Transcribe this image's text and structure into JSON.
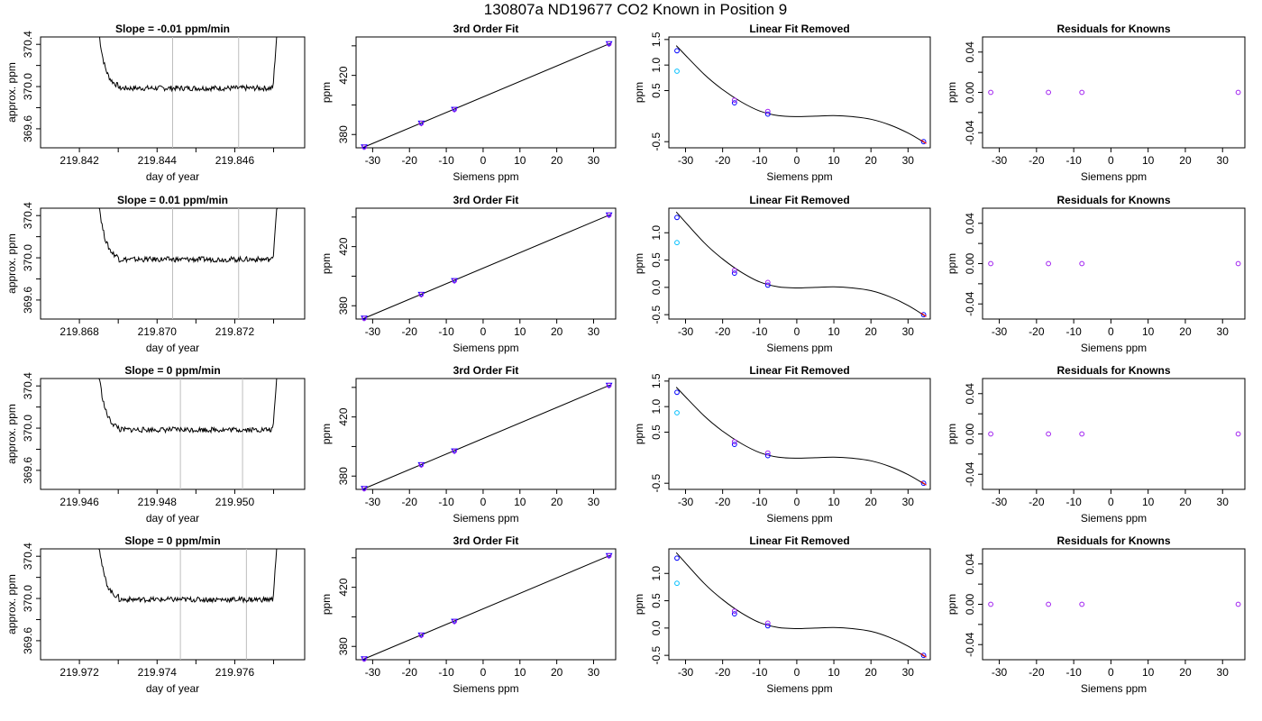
{
  "title": "130807a     ND19677    CO2 Known in Position  9",
  "colors": {
    "axis": "#000000",
    "line": "#000000",
    "vline": "#bebebe",
    "point_blue": "#0000ff",
    "point_purple": "#a020f0",
    "point_cyan": "#00bfff",
    "point_red": "#ff0000"
  },
  "rows": [
    {
      "row_id": "1",
      "ts": {
        "title": "Slope =  -0.01  ppm/min",
        "xlabel": "day of year",
        "ylabel": "approx. ppm",
        "xticks": [
          219.842,
          219.844,
          219.846
        ],
        "xtick_labels": [
          "219.842",
          "219.844",
          "219.846"
        ],
        "xlim": [
          219.841,
          219.8478
        ],
        "yticks": [
          369.6,
          370.0,
          370.4
        ],
        "ytick_labels": [
          "369.6",
          "370.0",
          "370.4"
        ],
        "ylim": [
          369.42,
          370.47
        ],
        "vlines": [
          219.8444,
          219.8461
        ],
        "flat": 369.985,
        "spike_left": 219.8425,
        "spike_right": 219.8471
      },
      "fit": {
        "title": "3rd Order Fit",
        "xlabel": "Siemens ppm",
        "ylabel": "ppm",
        "ylim": [
          371,
          446
        ],
        "yticks": [
          380,
          420
        ],
        "ytick_labels": [
          "380",
          "420"
        ]
      },
      "lin": {
        "title": "Linear Fit Removed",
        "xlabel": "Siemens ppm",
        "ylabel": "ppm",
        "ylim": [
          -0.62,
          1.55
        ],
        "yticks": [
          -0.5,
          0.5,
          1.0,
          1.5
        ],
        "ytick_labels": [
          "-0.5",
          "0.5",
          "1.0",
          "1.5"
        ],
        "cyan_y": 0.88
      },
      "res": {
        "title": "Residuals for Knowns",
        "xlabel": "Siemens ppm",
        "ylabel": "ppm"
      }
    },
    {
      "row_id": "2",
      "ts": {
        "title": "Slope =  0.01  ppm/min",
        "xlabel": "day of year",
        "ylabel": "approx. ppm",
        "xticks": [
          219.868,
          219.87,
          219.872
        ],
        "xtick_labels": [
          "219.868",
          "219.870",
          "219.872"
        ],
        "xlim": [
          219.867,
          219.8738
        ],
        "yticks": [
          369.6,
          370.0,
          370.4
        ],
        "ytick_labels": [
          "369.6",
          "370.0",
          "370.4"
        ],
        "ylim": [
          369.42,
          370.47
        ],
        "vlines": [
          219.8704,
          219.8721
        ],
        "flat": 369.985,
        "spike_left": 219.8685,
        "spike_right": 219.8731
      },
      "fit": {
        "title": "3rd Order Fit",
        "xlabel": "Siemens ppm",
        "ylabel": "ppm",
        "ylim": [
          371,
          446
        ],
        "yticks": [
          380,
          420
        ],
        "ytick_labels": [
          "380",
          "420"
        ]
      },
      "lin": {
        "title": "Linear Fit Removed",
        "xlabel": "Siemens ppm",
        "ylabel": "ppm",
        "ylim": [
          -0.58,
          1.45
        ],
        "yticks": [
          -0.5,
          0.0,
          0.5,
          1.0
        ],
        "ytick_labels": [
          "-0.5",
          "0.0",
          "0.5",
          "1.0"
        ],
        "cyan_y": 0.82
      },
      "res": {
        "title": "Residuals for Knowns",
        "xlabel": "Siemens ppm",
        "ylabel": "ppm"
      }
    },
    {
      "row_id": "3",
      "ts": {
        "title": "Slope =  0  ppm/min",
        "xlabel": "day of year",
        "ylabel": "approx. ppm",
        "xticks": [
          219.946,
          219.948,
          219.95
        ],
        "xtick_labels": [
          "219.946",
          "219.948",
          "219.950"
        ],
        "xlim": [
          219.945,
          219.9518
        ],
        "yticks": [
          369.6,
          370.0,
          370.4
        ],
        "ytick_labels": [
          "369.6",
          "370.0",
          "370.4"
        ],
        "ylim": [
          369.42,
          370.47
        ],
        "vlines": [
          219.9486,
          219.9502
        ],
        "flat": 369.985,
        "spike_left": 219.9465,
        "spike_right": 219.9511
      },
      "fit": {
        "title": "3rd Order Fit",
        "xlabel": "Siemens ppm",
        "ylabel": "ppm",
        "ylim": [
          371,
          446
        ],
        "yticks": [
          380,
          420
        ],
        "ytick_labels": [
          "380",
          "420"
        ]
      },
      "lin": {
        "title": "Linear Fit Removed",
        "xlabel": "Siemens ppm",
        "ylabel": "ppm",
        "ylim": [
          -0.62,
          1.55
        ],
        "yticks": [
          -0.5,
          0.5,
          1.0,
          1.5
        ],
        "ytick_labels": [
          "-0.5",
          "0.5",
          "1.0",
          "1.5"
        ],
        "cyan_y": 0.88
      },
      "res": {
        "title": "Residuals for Knowns",
        "xlabel": "Siemens ppm",
        "ylabel": "ppm"
      }
    },
    {
      "row_id": "4",
      "ts": {
        "title": "Slope =  0  ppm/min",
        "xlabel": "day of year",
        "ylabel": "approx. ppm",
        "xticks": [
          219.972,
          219.974,
          219.976
        ],
        "xtick_labels": [
          "219.972",
          "219.974",
          "219.976"
        ],
        "xlim": [
          219.971,
          219.9778
        ],
        "yticks": [
          369.6,
          370.0,
          370.4
        ],
        "ytick_labels": [
          "369.6",
          "370.0",
          "370.4"
        ],
        "ylim": [
          369.42,
          370.47
        ],
        "vlines": [
          219.9746,
          219.9763
        ],
        "flat": 369.99,
        "spike_left": 219.9725,
        "spike_right": 219.9771
      },
      "fit": {
        "title": "3rd Order Fit",
        "xlabel": "Siemens ppm",
        "ylabel": "ppm",
        "ylim": [
          371,
          446
        ],
        "yticks": [
          380,
          420
        ],
        "ytick_labels": [
          "380",
          "420"
        ]
      },
      "lin": {
        "title": "Linear Fit Removed",
        "xlabel": "Siemens ppm",
        "ylabel": "ppm",
        "ylim": [
          -0.58,
          1.45
        ],
        "yticks": [
          -0.5,
          0.0,
          0.5,
          1.0
        ],
        "ytick_labels": [
          "-0.5",
          "0.0",
          "0.5",
          "1.0"
        ],
        "cyan_y": 0.82
      },
      "res": {
        "title": "Residuals for Knowns",
        "xlabel": "Siemens ppm",
        "ylabel": "ppm"
      }
    }
  ],
  "chart_data": {
    "type": "line",
    "layout": "4 rows x 4 panels",
    "shared_x": {
      "siemens_xlim": [
        -34.5,
        36
      ],
      "siemens_ticks": [
        -30,
        -20,
        -10,
        0,
        10,
        20,
        30
      ],
      "siemens_tick_labels": [
        "-30",
        "-20",
        "-10",
        "0",
        "10",
        "20",
        "30"
      ]
    },
    "knowns_siemens_ppm": [
      -32.3,
      -16.8,
      -7.8,
      34.2
    ],
    "third_order_fit": {
      "points_ppm": [
        371.5,
        387.6,
        396.9,
        441.3
      ],
      "line": [
        [
          -32.5,
          371.3
        ],
        [
          34.5,
          441.6
        ]
      ]
    },
    "linear_fit_removed": {
      "points_ppm": [
        1.28,
        0.26,
        0.04,
        -0.5
      ],
      "curve_x": [
        -32.5,
        -25,
        -20,
        -15,
        -10,
        -5,
        0,
        5,
        10,
        15,
        20,
        25,
        30,
        34.5
      ],
      "curve_y": [
        1.38,
        0.82,
        0.52,
        0.28,
        0.1,
        0.01,
        -0.01,
        0.0,
        0.01,
        -0.01,
        -0.06,
        -0.17,
        -0.33,
        -0.52
      ]
    },
    "residuals": {
      "points_ppm": [
        0,
        0,
        0,
        0
      ],
      "ylim": [
        -0.055,
        0.055
      ],
      "yticks": [
        -0.04,
        0.0,
        0.04
      ],
      "ytick_labels": [
        "-0.04",
        "0.00",
        "0.04"
      ]
    }
  }
}
